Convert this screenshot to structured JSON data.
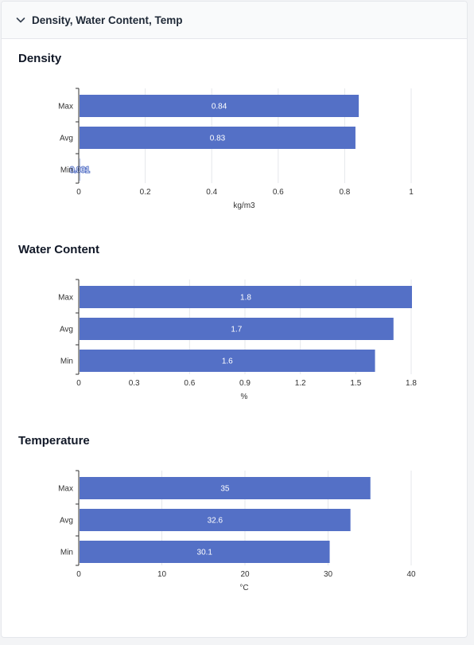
{
  "panel": {
    "title": "Density, Water Content, Temp",
    "icon": "chevron-down-icon"
  },
  "colors": {
    "bar": "#5470c6",
    "grid": "#e5e7eb",
    "axis": "#333333"
  },
  "chart_data": [
    {
      "id": "density",
      "type": "bar",
      "orientation": "horizontal",
      "title": "Density",
      "categories": [
        "Max",
        "Avg",
        "Min"
      ],
      "values": [
        0.84,
        0.83,
        0.001
      ],
      "value_labels": [
        "0.84",
        "0.83",
        "0.001"
      ],
      "xlabel": "kg/m3",
      "xlim": [
        0,
        1
      ],
      "xticks": [
        0,
        0.2,
        0.4,
        0.6,
        0.8,
        1
      ],
      "xtick_labels": [
        "0",
        "0.2",
        "0.4",
        "0.6",
        "0.8",
        "1"
      ],
      "grid": true
    },
    {
      "id": "water",
      "type": "bar",
      "orientation": "horizontal",
      "title": "Water Content",
      "categories": [
        "Max",
        "Avg",
        "Min"
      ],
      "values": [
        1.8,
        1.7,
        1.6
      ],
      "value_labels": [
        "1.8",
        "1.7",
        "1.6"
      ],
      "xlabel": "%",
      "xlim": [
        0,
        1.8
      ],
      "xticks": [
        0,
        0.3,
        0.6,
        0.9,
        1.2,
        1.5,
        1.8
      ],
      "xtick_labels": [
        "0",
        "0.3",
        "0.6",
        "0.9",
        "1.2",
        "1.5",
        "1.8"
      ],
      "grid": true
    },
    {
      "id": "temp",
      "type": "bar",
      "orientation": "horizontal",
      "title": "Temperature",
      "categories": [
        "Max",
        "Avg",
        "Min"
      ],
      "values": [
        35,
        32.6,
        30.1
      ],
      "value_labels": [
        "35",
        "32.6",
        "30.1"
      ],
      "xlabel": "°C",
      "xlim": [
        0,
        40
      ],
      "xticks": [
        0,
        10,
        20,
        30,
        40
      ],
      "xtick_labels": [
        "0",
        "10",
        "20",
        "30",
        "40"
      ],
      "grid": true
    }
  ]
}
